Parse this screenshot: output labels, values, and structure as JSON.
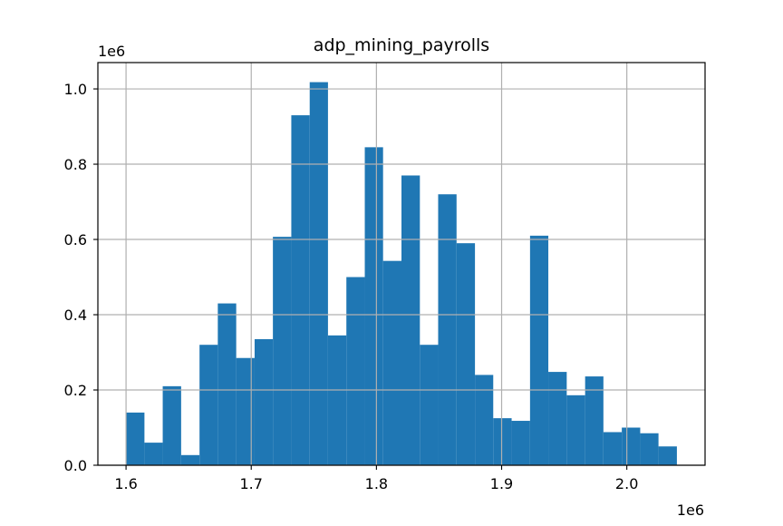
{
  "chart_data": {
    "type": "bar",
    "title": "adp_mining_payrolls",
    "xlabel": "",
    "ylabel": "",
    "x_offset_label": "1e6",
    "y_offset_label": "1e6",
    "xlim": [
      1.5775,
      2.0625
    ],
    "ylim": [
      0,
      1.07
    ],
    "grid": true,
    "bar_color": "#1f77b4",
    "x_ticks": [
      1.6,
      1.7,
      1.8,
      1.9,
      2.0
    ],
    "x_tick_labels": [
      "1.6",
      "1.7",
      "1.8",
      "1.9",
      "2.0"
    ],
    "y_ticks": [
      0.0,
      0.2,
      0.4,
      0.6,
      0.8,
      1.0
    ],
    "y_tick_labels": [
      "0.0",
      "0.2",
      "0.4",
      "0.6",
      "0.8",
      "1.0"
    ],
    "bin_edges": [
      1.6,
      1.6147,
      1.6293,
      1.644,
      1.6587,
      1.6733,
      1.688,
      1.7027,
      1.7173,
      1.732,
      1.7467,
      1.7613,
      1.776,
      1.7907,
      1.8053,
      1.82,
      1.8347,
      1.8493,
      1.864,
      1.8787,
      1.8933,
      1.908,
      1.9227,
      1.9373,
      1.952,
      1.9667,
      1.9813,
      1.996,
      2.0107,
      2.0253,
      2.04
    ],
    "values": [
      0.14,
      0.06,
      0.21,
      0.027,
      0.32,
      0.43,
      0.285,
      0.335,
      0.607,
      0.93,
      1.018,
      0.345,
      0.5,
      0.845,
      0.543,
      0.77,
      0.32,
      0.72,
      0.59,
      0.24,
      0.125,
      0.118,
      0.61,
      0.248,
      0.186,
      0.236,
      0.088,
      0.1,
      0.085,
      0.05
    ]
  }
}
